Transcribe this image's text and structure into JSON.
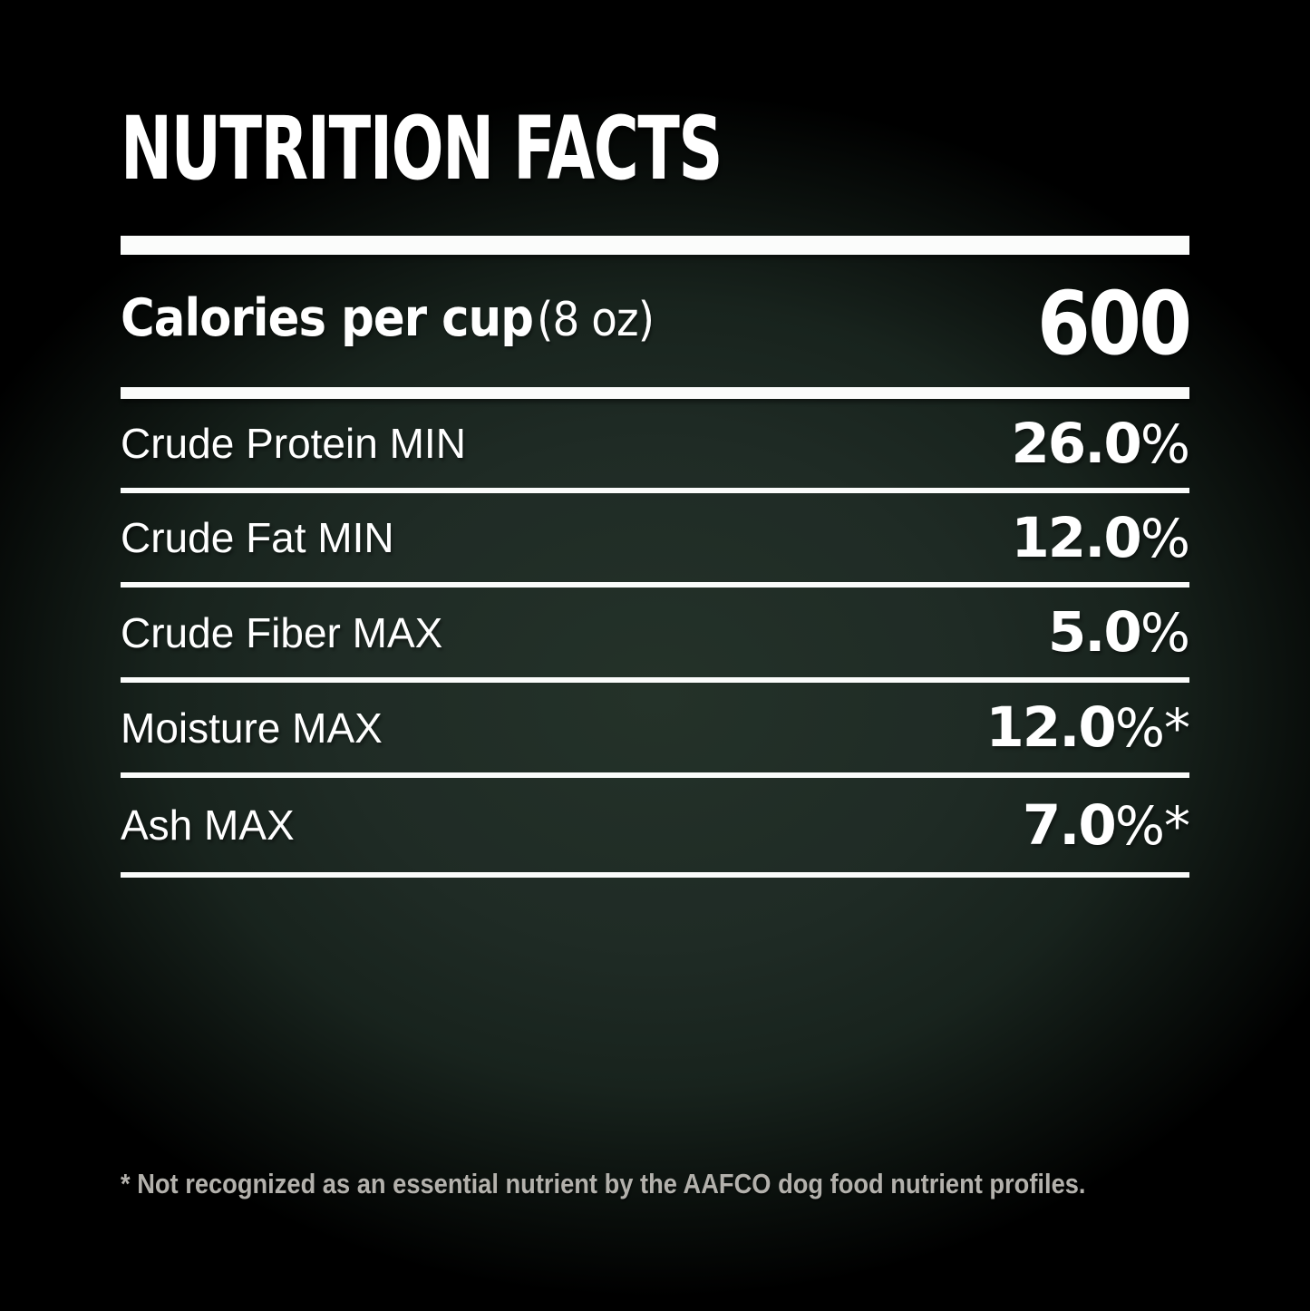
{
  "title": "NUTRITION FACTS",
  "calories": {
    "label": "Calories per cup",
    "serving": "(8 oz)",
    "value": "600"
  },
  "rows": [
    {
      "label": "Crude Protein MIN",
      "value": "26.0",
      "suffix": "%"
    },
    {
      "label": "Crude Fat MIN",
      "value": "12.0",
      "suffix": "%"
    },
    {
      "label": "Crude Fiber MAX",
      "value": "5.0",
      "suffix": "%"
    },
    {
      "label": "Moisture MAX",
      "value": "12.0",
      "suffix": "%*"
    },
    {
      "label": "Ash MAX",
      "value": "7.0",
      "suffix": "%*"
    }
  ],
  "footnote": "* Not recognized as an essential nutrient by the AAFCO dog food nutrient profiles.",
  "colors": {
    "background_center": "#223028",
    "background_edge": "#000000",
    "text": "#ffffff",
    "rule": "#fbfcfb",
    "footnote_text": "#b3b1ac"
  }
}
